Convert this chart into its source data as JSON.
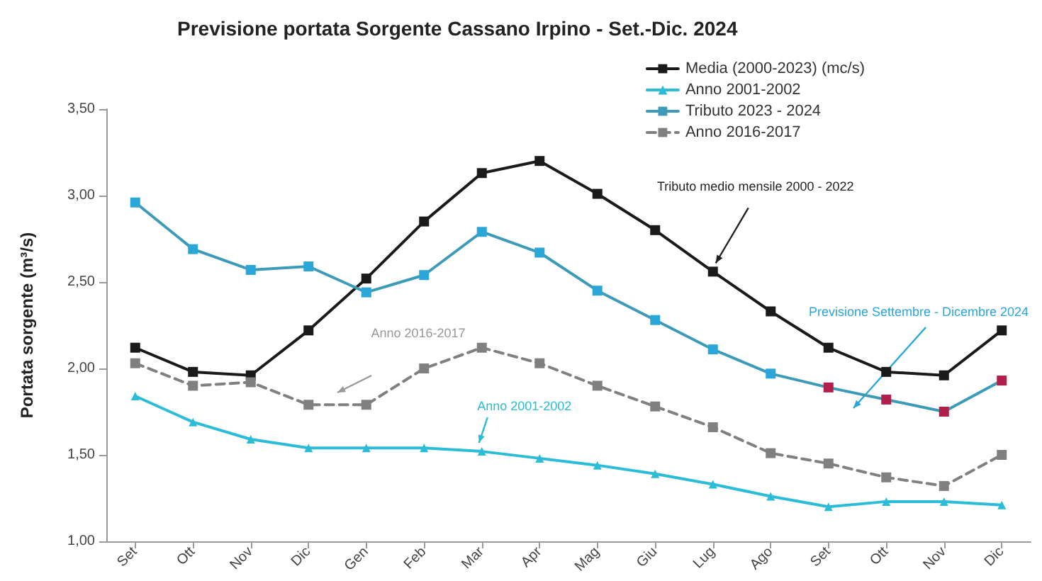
{
  "chart_data": {
    "type": "line",
    "title": "Previsione portata Sorgente Cassano Irpino - Set.-Dic. 2024",
    "ylabel": "Portata sorgente (m³/s)",
    "categories": [
      "Set",
      "Ott",
      "Nov",
      "Dic",
      "Gen",
      "Feb",
      "Mar",
      "Apr",
      "Mag",
      "Giu",
      "Lug",
      "Ago",
      "Set",
      "Ott",
      "Nov",
      "Dic"
    ],
    "series": [
      {
        "name": "Media (2000-2023) (mc/s)",
        "color": "#1a1a1a",
        "marker": "square",
        "line_style": "solid",
        "values": [
          2.12,
          1.98,
          1.96,
          2.22,
          2.52,
          2.85,
          3.13,
          3.2,
          3.01,
          2.8,
          2.56,
          2.33,
          2.12,
          1.98,
          1.96,
          2.22
        ]
      },
      {
        "name": "Anno 2001-2002",
        "color": "#2bbcd8",
        "marker": "triangle",
        "line_style": "solid",
        "values": [
          1.84,
          1.69,
          1.59,
          1.54,
          1.54,
          1.54,
          1.52,
          1.48,
          1.44,
          1.39,
          1.33,
          1.26,
          1.2,
          1.23,
          1.23,
          1.21
        ]
      },
      {
        "name": "Tributo 2023 - 2024",
        "color": "#3c9cb8",
        "marker": "square",
        "line_style": "solid",
        "colors": [
          "#2ba6d8",
          "#2ba6d8",
          "#2ba6d8",
          "#2ba6d8",
          "#2ba6d8",
          "#2ba6d8",
          "#2ba6d8",
          "#2ba6d8",
          "#2ba6d8",
          "#2ba6d8",
          "#2ba6d8",
          "#2ba6d8",
          "#b0204a",
          "#b0204a",
          "#b0204a",
          "#b0204a"
        ],
        "values": [
          2.96,
          2.69,
          2.57,
          2.59,
          2.44,
          2.54,
          2.79,
          2.67,
          2.45,
          2.28,
          2.11,
          1.97,
          1.89,
          1.82,
          1.75,
          1.93
        ]
      },
      {
        "name": "Anno 2016-2017",
        "color": "#808080",
        "marker": "square",
        "line_style": "dashed",
        "values": [
          2.03,
          1.9,
          1.92,
          1.79,
          1.79,
          2.0,
          2.12,
          2.03,
          1.9,
          1.78,
          1.66,
          1.51,
          1.45,
          1.37,
          1.32,
          1.5
        ]
      }
    ],
    "ylim": [
      1,
      3.5
    ],
    "yticks": [
      {
        "value": 1,
        "label": "1,00"
      },
      {
        "value": 1.5,
        "label": "1,50"
      },
      {
        "value": 2,
        "label": "2,00"
      },
      {
        "value": 2.5,
        "label": "2,50"
      },
      {
        "value": 3,
        "label": "3,00"
      },
      {
        "value": 3.5,
        "label": "3,50"
      }
    ],
    "grid": false,
    "legend": "top right",
    "annotations": [
      {
        "text": "Tributo medio mensile 2000 - 2022",
        "x": "Lug",
        "y": 2.56
      },
      "Anno 2016-2017",
      {
        "text": "Anno 2001-2002",
        "x": "Mar",
        "y": 1.52
      },
      "Previsione Settembre - Dicembre 2024"
    ]
  }
}
